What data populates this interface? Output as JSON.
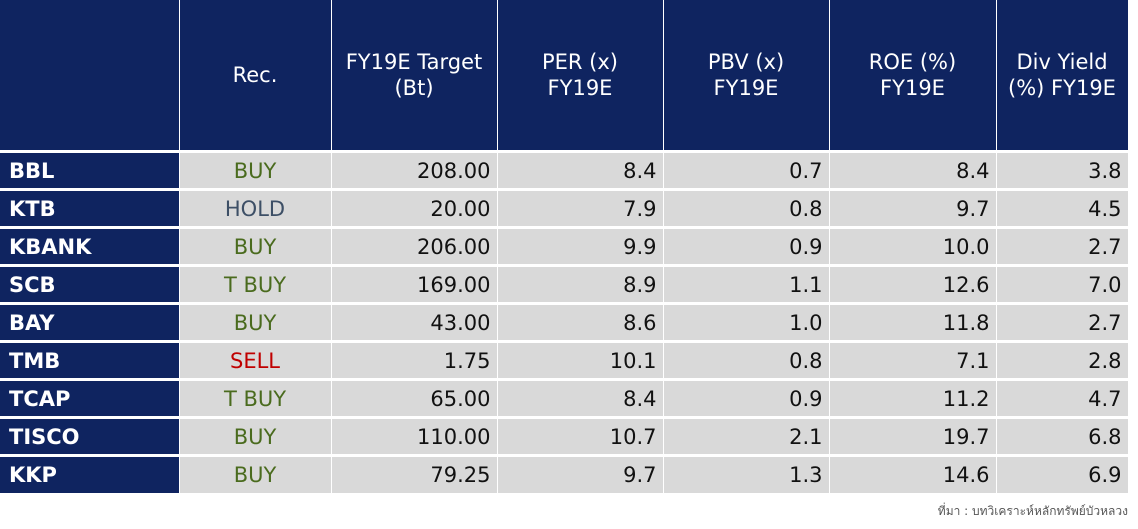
{
  "headers": {
    "rec": "Rec.",
    "target": [
      "FY19E Target",
      "(Bt)"
    ],
    "per": [
      "PER (x)",
      "FY19E"
    ],
    "pbv": [
      "PBV (x)",
      "FY19E"
    ],
    "roe": [
      "ROE (%)",
      "FY19E"
    ],
    "div": [
      "Div Yield",
      "(%) FY19E"
    ]
  },
  "rows": [
    {
      "name": "BBL",
      "rec": "BUY",
      "target": "208.00",
      "per": "8.4",
      "pbv": "0.7",
      "roe": "8.4",
      "div": "3.8"
    },
    {
      "name": "KTB",
      "rec": "HOLD",
      "target": "20.00",
      "per": "7.9",
      "pbv": "0.8",
      "roe": "9.7",
      "div": "4.5"
    },
    {
      "name": "KBANK",
      "rec": "BUY",
      "target": "206.00",
      "per": "9.9",
      "pbv": "0.9",
      "roe": "10.0",
      "div": "2.7"
    },
    {
      "name": "SCB",
      "rec": "T BUY",
      "target": "169.00",
      "per": "8.9",
      "pbv": "1.1",
      "roe": "12.6",
      "div": "7.0"
    },
    {
      "name": "BAY",
      "rec": "BUY",
      "target": "43.00",
      "per": "8.6",
      "pbv": "1.0",
      "roe": "11.8",
      "div": "2.7"
    },
    {
      "name": "TMB",
      "rec": "SELL",
      "target": "1.75",
      "per": "10.1",
      "pbv": "0.8",
      "roe": "7.1",
      "div": "2.8"
    },
    {
      "name": "TCAP",
      "rec": "T BUY",
      "target": "65.00",
      "per": "8.4",
      "pbv": "0.9",
      "roe": "11.2",
      "div": "4.7"
    },
    {
      "name": "TISCO",
      "rec": "BUY",
      "target": "110.00",
      "per": "10.7",
      "pbv": "2.1",
      "roe": "19.7",
      "div": "6.8"
    },
    {
      "name": "KKP",
      "rec": "BUY",
      "target": "79.25",
      "per": "9.7",
      "pbv": "1.3",
      "roe": "14.6",
      "div": "6.9"
    }
  ],
  "rec_colors": {
    "BUY": "#4a6b1e",
    "T BUY": "#4a6b1e",
    "HOLD": "#3d4f66",
    "SELL": "#c00000"
  },
  "source": "ที่มา : บทวิเคราะห์หลักทรัพย์บัวหลวง"
}
